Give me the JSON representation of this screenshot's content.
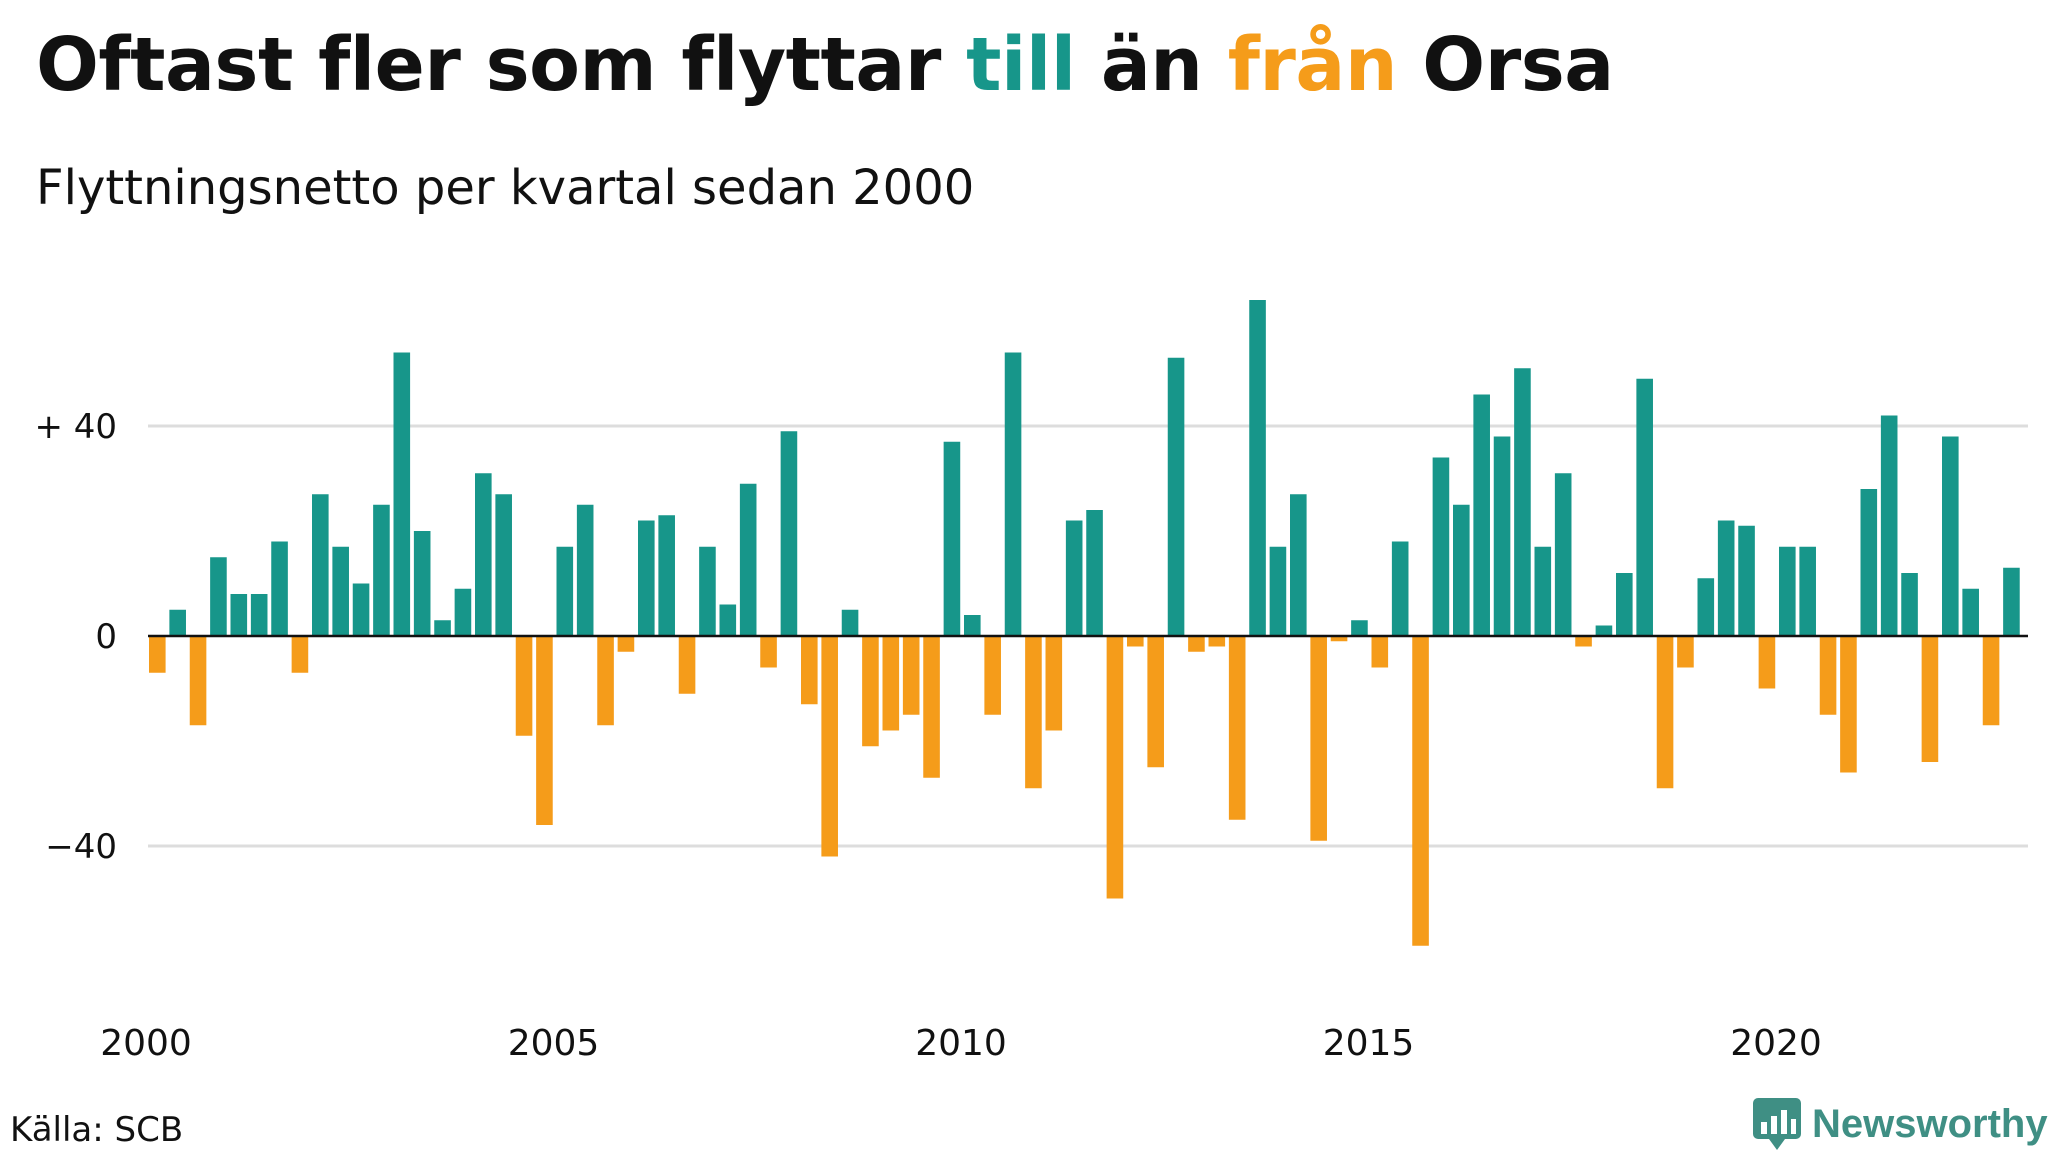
{
  "header": {
    "title_parts": [
      "Oftast fler som flyttar ",
      "till",
      " än ",
      "från",
      " Orsa"
    ],
    "subtitle": "Flyttningsnetto per kvartal sedan 2000"
  },
  "footer": {
    "source": "Källa: SCB",
    "brand": "Newsworthy"
  },
  "colors": {
    "positive": "#17968a",
    "negative": "#f59c1a",
    "grid": "#dddddd",
    "text": "#111111"
  },
  "chart_data": {
    "type": "bar",
    "title": "Oftast fler som flyttar till än från Orsa",
    "subtitle": "Flyttningsnetto per kvartal sedan 2000",
    "x_start": 2000.0,
    "x_step": 0.25,
    "x_ticks": [
      2000,
      2005,
      2010,
      2015,
      2020
    ],
    "x_tick_labels": [
      "2000",
      "2005",
      "2010",
      "2015",
      "2020"
    ],
    "y_ticks": [
      40,
      0,
      -40
    ],
    "y_tick_labels": [
      "+ 40",
      "0",
      "−40"
    ],
    "ylim": [
      -70,
      70
    ],
    "grid": true,
    "values": [
      -7,
      5,
      -17,
      15,
      8,
      8,
      18,
      -7,
      27,
      17,
      10,
      25,
      54,
      20,
      3,
      9,
      31,
      27,
      -19,
      -36,
      17,
      25,
      -17,
      -3,
      22,
      23,
      -11,
      17,
      6,
      29,
      -6,
      39,
      -13,
      -42,
      5,
      -21,
      -18,
      -15,
      -27,
      37,
      4,
      -15,
      54,
      -29,
      -18,
      22,
      24,
      -50,
      -2,
      -25,
      53,
      -3,
      -2,
      -35,
      64,
      17,
      27,
      -39,
      -1,
      3,
      -6,
      18,
      -59,
      34,
      25,
      46,
      38,
      51,
      17,
      31,
      -2,
      2,
      12,
      49,
      -29,
      -6,
      11,
      22,
      21,
      -10,
      17,
      17,
      -15,
      -26,
      28,
      42,
      12,
      -24,
      38,
      9,
      -17,
      13
    ]
  }
}
